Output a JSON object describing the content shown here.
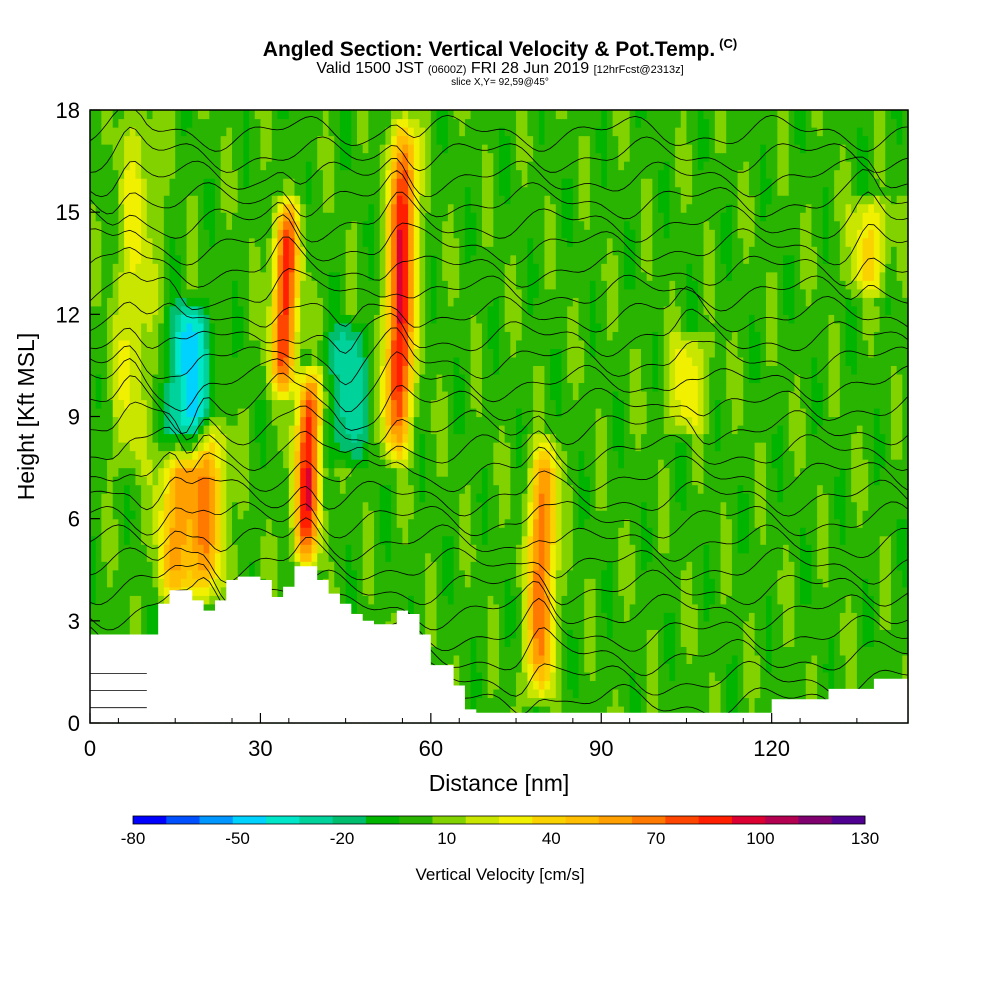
{
  "header": {
    "title": "Angled Section: Vertical Velocity & Pot.Temp.",
    "copyright_mark": "(C)",
    "valid_prefix": "Valid 1500 JST",
    "valid_utc": "(0600Z)",
    "valid_date": "FRI 28 Jun 2019",
    "forecast": "[12hrFcst@2313z]",
    "slice": "slice X,Y= 92,59@45°"
  },
  "colors": {
    "terrain": "#ffffff",
    "frame": "#000000",
    "contour": "#000000",
    "background_field": "#54c800"
  },
  "chart_data": {
    "type": "heatmap",
    "xlabel": "Distance [nm]",
    "ylabel": "Height [Kft MSL]",
    "xlim": [
      0,
      144
    ],
    "ylim": [
      0,
      18
    ],
    "xticks": [
      0,
      30,
      60,
      90,
      120
    ],
    "yticks": [
      0,
      3,
      6,
      9,
      12,
      15,
      18
    ],
    "grid": false,
    "colorbar": {
      "label": "Vertical Velocity [cm/s]",
      "tick_labels": [
        "-80",
        "-50",
        "-20",
        "10",
        "40",
        "70",
        "100",
        "130"
      ],
      "levels": [
        -80,
        -70,
        -60,
        -50,
        -40,
        -30,
        -20,
        -10,
        0,
        10,
        20,
        30,
        40,
        50,
        60,
        70,
        80,
        90,
        100,
        110,
        120,
        130
      ],
      "colors": [
        "#0000ff",
        "#0050ff",
        "#0096ff",
        "#00d2ff",
        "#00e6c8",
        "#00d29b",
        "#00be6e",
        "#00b400",
        "#28b400",
        "#82d200",
        "#c8e600",
        "#f0f000",
        "#fad200",
        "#ffbe00",
        "#ffa000",
        "#ff7800",
        "#ff4600",
        "#ff1e00",
        "#dc0032",
        "#b40050",
        "#800070",
        "#500090"
      ]
    },
    "features": [
      {
        "x": 7,
        "z_bottom": 7.5,
        "z_top": 18,
        "w": 25,
        "kind": "updraft"
      },
      {
        "x": 15,
        "z_bottom": 4,
        "z_top": 8,
        "w": 50,
        "kind": "updraft"
      },
      {
        "x": 20,
        "z_bottom": 4,
        "z_top": 8.5,
        "w": 55,
        "kind": "updraft"
      },
      {
        "x": 17,
        "z_bottom": 8,
        "z_top": 12,
        "w": -55,
        "kind": "downdraft"
      },
      {
        "x": 34,
        "z_bottom": 10,
        "z_top": 15,
        "w": 85,
        "kind": "updraft"
      },
      {
        "x": 38,
        "z_bottom": 5,
        "z_top": 10,
        "w": 90,
        "kind": "updraft"
      },
      {
        "x": 45,
        "z_bottom": 8,
        "z_top": 11.5,
        "w": -35,
        "kind": "downdraft"
      },
      {
        "x": 54,
        "z_bottom": 8,
        "z_top": 17.5,
        "w": 100,
        "kind": "updraft"
      },
      {
        "x": 79,
        "z_bottom": 1,
        "z_top": 8,
        "w": 75,
        "kind": "updraft"
      },
      {
        "x": 105,
        "z_bottom": 9,
        "z_top": 11,
        "w": 30,
        "kind": "updraft"
      },
      {
        "x": 137,
        "z_bottom": 13,
        "z_top": 15,
        "w": 35,
        "kind": "updraft"
      }
    ],
    "terrain": {
      "x": [
        0,
        10,
        12,
        14,
        16,
        18,
        20,
        22,
        24,
        26,
        28,
        30,
        32,
        34,
        36,
        38,
        40,
        42,
        44,
        46,
        48,
        50,
        52,
        54,
        56,
        58,
        60,
        62,
        64,
        66,
        68,
        70,
        80,
        90,
        100,
        110,
        114,
        120,
        126,
        130,
        134,
        138,
        144
      ],
      "height": [
        2.6,
        2.6,
        3.5,
        3.9,
        3.9,
        3.6,
        3.3,
        3.6,
        4.2,
        4.3,
        4.3,
        4.2,
        3.7,
        4.0,
        4.6,
        4.6,
        4.2,
        3.8,
        3.5,
        3.2,
        3.0,
        2.9,
        2.9,
        3.3,
        3.2,
        2.6,
        1.7,
        1.7,
        1.1,
        0.4,
        0.3,
        0.3,
        0.3,
        0.3,
        0.3,
        0.3,
        0.3,
        0.7,
        0.7,
        1.0,
        1.0,
        1.3,
        1.3
      ]
    },
    "theta_contour_count": 26
  }
}
